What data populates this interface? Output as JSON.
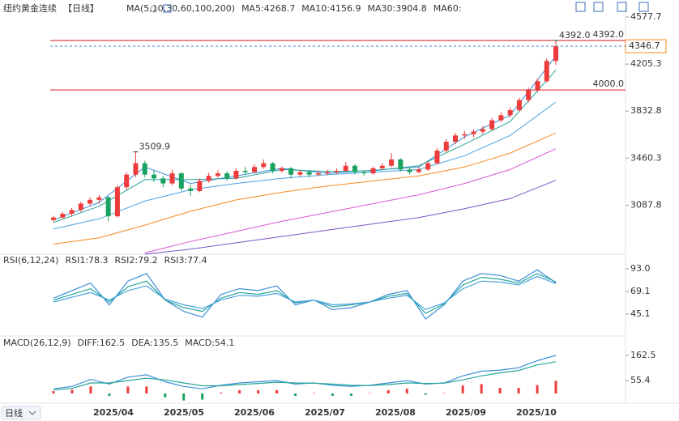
{
  "chart_data": [
    {
      "type": "candlestick",
      "title": "纽约黄金连续",
      "period": "【日线】",
      "indicator": "MA(5,10,30,60,100,200)",
      "up_color": "#ee3b3b",
      "down_color": "#1aa260",
      "ohlc": [
        [
          2970,
          3005,
          2955,
          2990
        ],
        [
          2990,
          3035,
          2975,
          3020
        ],
        [
          3020,
          3065,
          3000,
          3050
        ],
        [
          3050,
          3115,
          3035,
          3100
        ],
        [
          3100,
          3150,
          3080,
          3130
        ],
        [
          3130,
          3170,
          3100,
          3150
        ],
        [
          3150,
          3160,
          2960,
          3000
        ],
        [
          3000,
          3245,
          2990,
          3230
        ],
        [
          3230,
          3350,
          3210,
          3330
        ],
        [
          3330,
          3509.9,
          3310,
          3420
        ],
        [
          3420,
          3440,
          3310,
          3330
        ],
        [
          3330,
          3360,
          3270,
          3300
        ],
        [
          3300,
          3320,
          3230,
          3260
        ],
        [
          3260,
          3370,
          3245,
          3340
        ],
        [
          3340,
          3350,
          3200,
          3220
        ],
        [
          3220,
          3250,
          3160,
          3200
        ],
        [
          3200,
          3300,
          3190,
          3280
        ],
        [
          3280,
          3345,
          3265,
          3320
        ],
        [
          3320,
          3365,
          3300,
          3340
        ],
        [
          3340,
          3355,
          3280,
          3300
        ],
        [
          3300,
          3380,
          3290,
          3360
        ],
        [
          3360,
          3390,
          3330,
          3350
        ],
        [
          3350,
          3415,
          3340,
          3390
        ],
        [
          3390,
          3450,
          3375,
          3420
        ],
        [
          3420,
          3430,
          3340,
          3360
        ],
        [
          3360,
          3395,
          3345,
          3380
        ],
        [
          3380,
          3390,
          3300,
          3330
        ],
        [
          3330,
          3365,
          3315,
          3350
        ],
        [
          3350,
          3365,
          3310,
          3330
        ],
        [
          3330,
          3360,
          3320,
          3340
        ],
        [
          3340,
          3370,
          3325,
          3350
        ],
        [
          3350,
          3380,
          3335,
          3360
        ],
        [
          3360,
          3430,
          3350,
          3400
        ],
        [
          3400,
          3410,
          3330,
          3350
        ],
        [
          3350,
          3365,
          3320,
          3340
        ],
        [
          3340,
          3395,
          3330,
          3380
        ],
        [
          3380,
          3420,
          3365,
          3400
        ],
        [
          3400,
          3500,
          3390,
          3450
        ],
        [
          3450,
          3460,
          3355,
          3370
        ],
        [
          3370,
          3385,
          3330,
          3350
        ],
        [
          3350,
          3390,
          3340,
          3370
        ],
        [
          3370,
          3435,
          3360,
          3420
        ],
        [
          3420,
          3540,
          3410,
          3520
        ],
        [
          3520,
          3610,
          3505,
          3590
        ],
        [
          3590,
          3660,
          3570,
          3640
        ],
        [
          3640,
          3675,
          3610,
          3650
        ],
        [
          3650,
          3690,
          3625,
          3670
        ],
        [
          3670,
          3715,
          3650,
          3690
        ],
        [
          3690,
          3780,
          3680,
          3760
        ],
        [
          3760,
          3825,
          3745,
          3800
        ],
        [
          3800,
          3860,
          3780,
          3840
        ],
        [
          3840,
          3940,
          3830,
          3920
        ],
        [
          3920,
          4020,
          3900,
          4000
        ],
        [
          4000,
          4090,
          3980,
          4070
        ],
        [
          4070,
          4250,
          4060,
          4230
        ],
        [
          4230,
          4392.0,
          4200,
          4346.7
        ]
      ],
      "series": [
        {
          "name": "MA5:4268.7",
          "color": "#3d8fd6",
          "values": [
            2970,
            3110,
            3390,
            3260,
            3320,
            3380,
            3340,
            3365,
            3390,
            3630,
            3800,
            4268.7
          ]
        },
        {
          "name": "MA10:4156.9",
          "color": "#26a69a",
          "values": [
            2950,
            3080,
            3290,
            3290,
            3300,
            3370,
            3355,
            3360,
            3400,
            3570,
            3750,
            4156.9
          ]
        },
        {
          "name": "MA30:3904.8",
          "color": "#4aa3df",
          "values": [
            2900,
            2980,
            3120,
            3210,
            3260,
            3300,
            3330,
            3350,
            3370,
            3480,
            3640,
            3904.8
          ]
        },
        {
          "name": "MA60:",
          "color": "#f5891f",
          "values": [
            2780,
            2830,
            2930,
            3040,
            3130,
            3190,
            3240,
            3280,
            3320,
            3390,
            3500,
            3660
          ]
        },
        {
          "color": "#d957d2",
          "values": [
            null,
            null,
            2710,
            2800,
            2880,
            2960,
            3030,
            3100,
            3170,
            3260,
            3370,
            3535
          ]
        },
        {
          "color": "#7b52c9",
          "values": [
            null,
            null,
            2700,
            2740,
            2790,
            2840,
            2890,
            2940,
            2990,
            3060,
            3140,
            3285
          ]
        }
      ],
      "ylim": [
        2706,
        4674
      ],
      "yticks": [
        4577.7,
        4205.3,
        3832.8,
        3460.3,
        3087.8
      ],
      "lines": [
        {
          "value": 4392,
          "label": "4392.0",
          "color": "#d6191b"
        },
        {
          "value": 4000,
          "label": "4000.0",
          "color": "#d6191b"
        }
      ],
      "last": {
        "value": 4346.7,
        "label": "4346.7",
        "color": "#f5891f",
        "line_color": "#3d7fd6"
      },
      "annotations": [
        {
          "value": 3509.9,
          "label": "3509.9"
        },
        {
          "value": 4392,
          "label": "4392.0"
        }
      ],
      "annotation_color": "#e53935"
    },
    {
      "type": "line",
      "title": "RSI(6,12,24)",
      "series": [
        {
          "name": "RSI1:78.3",
          "color": "#3d8fd6",
          "values": [
            62,
            70,
            78,
            55,
            80,
            88,
            60,
            48,
            42,
            66,
            72,
            70,
            75,
            55,
            60,
            50,
            52,
            58,
            66,
            70,
            40,
            55,
            80,
            88,
            86,
            80,
            92,
            78.3
          ]
        },
        {
          "name": "RSI2:79.2",
          "color": "#26a69a",
          "values": [
            60,
            66,
            72,
            58,
            74,
            80,
            60,
            52,
            48,
            62,
            68,
            66,
            70,
            57,
            60,
            53,
            55,
            58,
            64,
            67,
            46,
            56,
            76,
            84,
            82,
            78,
            88,
            79.2
          ]
        },
        {
          "name": "RSI3:77.4",
          "color": "#4aa3df",
          "values": [
            58,
            63,
            68,
            60,
            70,
            75,
            61,
            55,
            51,
            60,
            65,
            64,
            67,
            58,
            60,
            55,
            56,
            58,
            62,
            65,
            50,
            57,
            72,
            80,
            79,
            76,
            85,
            77.4
          ]
        }
      ],
      "ylim": [
        24.6,
        105
      ],
      "yticks": [
        {
          "value": 93,
          "label": "93.0"
        },
        69.1,
        45.1
      ]
    },
    {
      "type": "macd",
      "title": "MACD(26,12,9)",
      "up_color": "#ee3b3b",
      "down_color": "#1aa260",
      "series": [
        {
          "name": "DIFF:162.5",
          "color": "#3d8fd6",
          "values": [
            20,
            30,
            60,
            40,
            70,
            80,
            50,
            30,
            20,
            35,
            45,
            50,
            55,
            40,
            45,
            35,
            30,
            35,
            45,
            55,
            40,
            45,
            75,
            95,
            100,
            110,
            140,
            162.5
          ]
        },
        {
          "name": "DEA:135.5",
          "color": "#26a69a",
          "values": [
            15,
            22,
            45,
            45,
            55,
            65,
            58,
            45,
            33,
            33,
            38,
            43,
            48,
            45,
            44,
            40,
            35,
            34,
            38,
            45,
            43,
            44,
            58,
            75,
            88,
            98,
            122,
            135.5
          ]
        },
        {
          "name": "MACD:54.1",
          "color": "#4aa3df",
          "kind": "histogram",
          "values": [
            10,
            16,
            30,
            -10,
            30,
            30,
            -16,
            -30,
            -26,
            4,
            14,
            14,
            14,
            -10,
            2,
            -10,
            -10,
            2,
            14,
            20,
            -6,
            2,
            34,
            40,
            24,
            24,
            36,
            54.1
          ]
        }
      ],
      "ylim": [
        -31,
        228
      ],
      "yticks": [
        162.5,
        55.4
      ],
      "x_labels": [
        "2025/04",
        "2025/05",
        "2025/06",
        "2025/07",
        "2025/08",
        "2025/09",
        "2025/10"
      ],
      "period_button": "日线"
    }
  ]
}
